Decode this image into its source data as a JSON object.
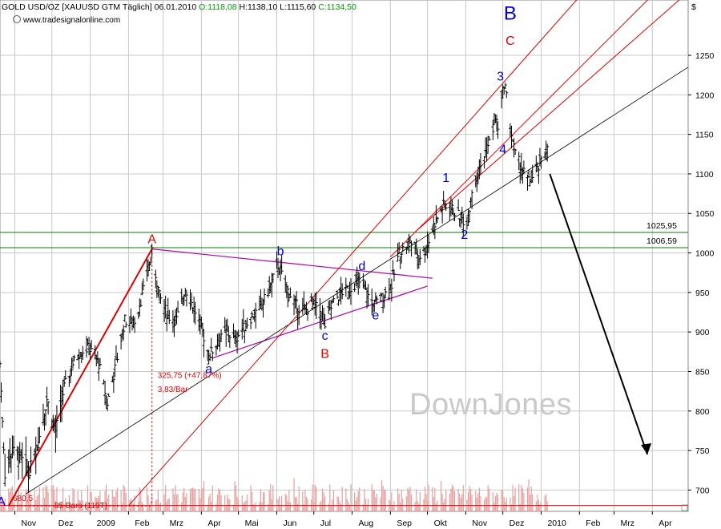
{
  "header": {
    "title": "GOLD USD/OZ [XAUUSD GTM",
    "timeframe": "Täglich]",
    "date": "06.01.2010",
    "open": "O:1118,08",
    "high": "H:1138,10",
    "low": "L:1115,60",
    "close": "C:1134,50",
    "currency": "$",
    "source": "www.tradesignalonline.com"
  },
  "watermark": "DownJones",
  "colors": {
    "price": "#000000",
    "channel": "#e00000",
    "triangle": "#b000b0",
    "support_line": "#000000",
    "level_line": "#008000",
    "grid": "#c8c8c8",
    "volume": "#e6a0a0",
    "wave_blue": "#0000dd",
    "wave_red": "#e00000"
  },
  "chart_data": {
    "type": "candlestick-ohlc",
    "instrument": "GOLD USD/OZ",
    "timeframe": "Täglich",
    "y_unit": "$",
    "y_ticks": [
      700,
      750,
      800,
      850,
      900,
      950,
      1000,
      1050,
      1100,
      1150,
      1200,
      1250
    ],
    "ylim": [
      673,
      1320
    ],
    "x_axis_labels": [
      "Nov",
      "Dez",
      "2009",
      "Feb",
      "Mrz",
      "Apr",
      "Mai",
      "Jun",
      "Jul",
      "Aug",
      "Sep",
      "Okt",
      "Nov",
      "Dez",
      "2010",
      "Feb",
      "Mrz",
      "Apr"
    ],
    "x_axis_months": [
      "2008-11",
      "2008-12",
      "2009-01",
      "2009-02",
      "2009-03",
      "2009-04",
      "2009-05",
      "2009-06",
      "2009-07",
      "2009-08",
      "2009-09",
      "2009-10",
      "2009-11",
      "2009-12",
      "2010-01",
      "2010-02",
      "2010-03",
      "2010-04"
    ],
    "xlim": [
      "2008-10-20",
      "2010-04-30"
    ],
    "grid": true,
    "price_path": [
      {
        "date": "2008-10-20",
        "close": 860
      },
      {
        "date": "2008-10-24",
        "close": 720
      },
      {
        "date": "2008-10-30",
        "close": 750
      },
      {
        "date": "2008-11-06",
        "close": 740
      },
      {
        "date": "2008-11-13",
        "close": 725
      },
      {
        "date": "2008-11-20",
        "close": 760
      },
      {
        "date": "2008-11-27",
        "close": 815
      },
      {
        "date": "2008-12-04",
        "close": 775
      },
      {
        "date": "2008-12-11",
        "close": 830
      },
      {
        "date": "2008-12-18",
        "close": 860
      },
      {
        "date": "2008-12-24",
        "close": 875
      },
      {
        "date": "2008-12-31",
        "close": 880
      },
      {
        "date": "2009-01-08",
        "close": 860
      },
      {
        "date": "2009-01-15",
        "close": 810
      },
      {
        "date": "2009-01-22",
        "close": 860
      },
      {
        "date": "2009-01-29",
        "close": 915
      },
      {
        "date": "2009-02-05",
        "close": 910
      },
      {
        "date": "2009-02-12",
        "close": 945
      },
      {
        "date": "2009-02-20",
        "close": 1000
      },
      {
        "date": "2009-02-26",
        "close": 945
      },
      {
        "date": "2009-03-05",
        "close": 920
      },
      {
        "date": "2009-03-12",
        "close": 915
      },
      {
        "date": "2009-03-19",
        "close": 955
      },
      {
        "date": "2009-03-26",
        "close": 930
      },
      {
        "date": "2009-04-02",
        "close": 900
      },
      {
        "date": "2009-04-07",
        "close": 870
      },
      {
        "date": "2009-04-14",
        "close": 885
      },
      {
        "date": "2009-04-21",
        "close": 900
      },
      {
        "date": "2009-04-28",
        "close": 890
      },
      {
        "date": "2009-05-05",
        "close": 905
      },
      {
        "date": "2009-05-12",
        "close": 920
      },
      {
        "date": "2009-05-19",
        "close": 930
      },
      {
        "date": "2009-05-26",
        "close": 955
      },
      {
        "date": "2009-06-02",
        "close": 985
      },
      {
        "date": "2009-06-09",
        "close": 955
      },
      {
        "date": "2009-06-16",
        "close": 935
      },
      {
        "date": "2009-06-23",
        "close": 925
      },
      {
        "date": "2009-06-30",
        "close": 935
      },
      {
        "date": "2009-07-07",
        "close": 925
      },
      {
        "date": "2009-07-10",
        "close": 908
      },
      {
        "date": "2009-07-16",
        "close": 935
      },
      {
        "date": "2009-07-23",
        "close": 950
      },
      {
        "date": "2009-07-30",
        "close": 955
      },
      {
        "date": "2009-08-06",
        "close": 965
      },
      {
        "date": "2009-08-12",
        "close": 950
      },
      {
        "date": "2009-08-19",
        "close": 935
      },
      {
        "date": "2009-08-26",
        "close": 945
      },
      {
        "date": "2009-09-02",
        "close": 960
      },
      {
        "date": "2009-09-08",
        "close": 1000
      },
      {
        "date": "2009-09-17",
        "close": 1015
      },
      {
        "date": "2009-09-24",
        "close": 995
      },
      {
        "date": "2009-09-30",
        "close": 1005
      },
      {
        "date": "2009-10-06",
        "close": 1035
      },
      {
        "date": "2009-10-14",
        "close": 1060
      },
      {
        "date": "2009-10-21",
        "close": 1055
      },
      {
        "date": "2009-10-28",
        "close": 1045
      },
      {
        "date": "2009-11-02",
        "close": 1035
      },
      {
        "date": "2009-11-06",
        "close": 1080
      },
      {
        "date": "2009-11-13",
        "close": 1110
      },
      {
        "date": "2009-11-20",
        "close": 1140
      },
      {
        "date": "2009-11-25",
        "close": 1170
      },
      {
        "date": "2009-11-27",
        "close": 1160
      },
      {
        "date": "2009-12-02",
        "close": 1215
      },
      {
        "date": "2009-12-03",
        "close": 1210
      },
      {
        "date": "2009-12-08",
        "close": 1150
      },
      {
        "date": "2009-12-11",
        "close": 1125
      },
      {
        "date": "2009-12-17",
        "close": 1105
      },
      {
        "date": "2009-12-22",
        "close": 1090
      },
      {
        "date": "2009-12-28",
        "close": 1100
      },
      {
        "date": "2010-01-06",
        "close": 1134.5
      }
    ],
    "volume_note": "Umsatz (volume) histogram along bottom, no numeric scale shown",
    "horizontal_levels": [
      {
        "label": "1025,95",
        "value": 1025.95
      },
      {
        "label": "1006,59",
        "value": 1006.59
      },
      {
        "label": "",
        "value": 680.5
      }
    ],
    "annotations": {
      "wave_labels": [
        {
          "text": "A",
          "date": "2008-10-21",
          "price": 680,
          "color": "blue"
        },
        {
          "text": "A",
          "date": "2009-02-20",
          "price": 1012,
          "color": "red"
        },
        {
          "text": "a",
          "date": "2009-04-07",
          "price": 848,
          "color": "blue"
        },
        {
          "text": "b",
          "date": "2009-06-04",
          "price": 997,
          "color": "blue"
        },
        {
          "text": "c",
          "date": "2009-07-10",
          "price": 890,
          "color": "blue"
        },
        {
          "text": "B",
          "date": "2009-07-10",
          "price": 867,
          "color": "red"
        },
        {
          "text": "d",
          "date": "2009-08-09",
          "price": 978,
          "color": "blue"
        },
        {
          "text": "e",
          "date": "2009-08-20",
          "price": 916,
          "color": "blue"
        },
        {
          "text": "1",
          "date": "2009-10-16",
          "price": 1090,
          "color": "blue"
        },
        {
          "text": "2",
          "date": "2009-10-31",
          "price": 1018,
          "color": "blue"
        },
        {
          "text": "3",
          "date": "2009-11-29",
          "price": 1218,
          "color": "blue"
        },
        {
          "text": "4",
          "date": "2009-12-01",
          "price": 1126,
          "color": "blue"
        },
        {
          "text": "B",
          "date": "2009-12-07",
          "price": 1295,
          "color": "blue"
        },
        {
          "text": "C",
          "date": "2009-12-07",
          "price": 1263,
          "color": "red"
        }
      ],
      "measure_text": [
        "325,75 (+47,87%)",
        "3,83/Bar"
      ],
      "bottom_texts": [
        "680,5",
        "85 Bars (119T)"
      ],
      "forecast_arrow": "black arrow pointing down toward approx 745 in Apr 2010"
    }
  }
}
